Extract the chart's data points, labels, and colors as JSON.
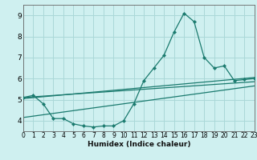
{
  "title": "",
  "xlabel": "Humidex (Indice chaleur)",
  "bg_color": "#cff0f0",
  "grid_color": "#aad8d8",
  "line_color": "#1a7a6e",
  "xlim": [
    0,
    23
  ],
  "ylim": [
    3.5,
    9.5
  ],
  "yticks": [
    4,
    5,
    6,
    7,
    8,
    9
  ],
  "xticks": [
    0,
    1,
    2,
    3,
    4,
    5,
    6,
    7,
    8,
    9,
    10,
    11,
    12,
    13,
    14,
    15,
    16,
    17,
    18,
    19,
    20,
    21,
    22,
    23
  ],
  "main_series": {
    "x": [
      0,
      1,
      2,
      3,
      4,
      5,
      6,
      7,
      8,
      9,
      10,
      11,
      12,
      13,
      14,
      15,
      16,
      17,
      18,
      19,
      20,
      21,
      22,
      23
    ],
    "y": [
      5.1,
      5.2,
      4.8,
      4.1,
      4.1,
      3.85,
      3.75,
      3.7,
      3.75,
      3.75,
      4.0,
      4.8,
      5.9,
      6.5,
      7.1,
      8.2,
      9.1,
      8.7,
      7.0,
      6.5,
      6.6,
      5.9,
      5.95,
      6.0
    ]
  },
  "trend_lines": [
    {
      "x": [
        0,
        23
      ],
      "y": [
        5.05,
        6.05
      ]
    },
    {
      "x": [
        0,
        23
      ],
      "y": [
        5.1,
        5.85
      ]
    },
    {
      "x": [
        0,
        23
      ],
      "y": [
        4.15,
        5.65
      ]
    }
  ]
}
